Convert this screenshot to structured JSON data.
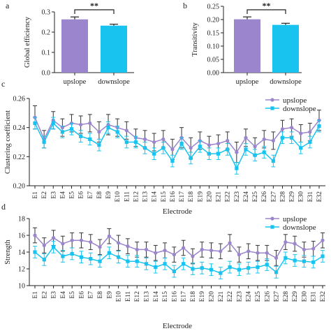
{
  "colors": {
    "upslope": "#9b85cc",
    "downslope": "#19c3f0",
    "axis": "#222222"
  },
  "chart_data": [
    {
      "panel_label": "a",
      "type": "bar",
      "categories": [
        "upslope",
        "downslope"
      ],
      "values": [
        0.263,
        0.232
      ],
      "errors": [
        0.012,
        0.007
      ],
      "ylabel": "Global efficiency",
      "xlabel": "",
      "ylim": [
        0,
        0.3
      ],
      "yticks": [
        "0.0",
        "0.1",
        "0.2",
        "0.3"
      ],
      "significance": "**"
    },
    {
      "panel_label": "b",
      "type": "bar",
      "categories": [
        "upslope",
        "downslope"
      ],
      "values": [
        0.201,
        0.18
      ],
      "errors": [
        0.009,
        0.006
      ],
      "ylabel": "Transitivity",
      "xlabel": "",
      "ylim": [
        0,
        0.25
      ],
      "yticks": [
        "0.00",
        "0.05",
        "0.10",
        "0.15",
        "0.20",
        "0.25"
      ],
      "significance": "**"
    },
    {
      "panel_label": "c",
      "type": "line",
      "ylabel": "Clustering coefficient",
      "xlabel": "Electrode",
      "ylim": [
        0.2,
        0.26
      ],
      "yticks": [
        "0.20",
        "0.22",
        "0.24",
        "0.26"
      ],
      "legend_position": "top-right",
      "categories": [
        "E1",
        "E2",
        "E3",
        "E4",
        "E5",
        "E6",
        "E7",
        "E8",
        "E9",
        "E10",
        "E11",
        "E12",
        "E13",
        "E14",
        "E15",
        "E16",
        "E17",
        "E18",
        "E19",
        "E20",
        "E21",
        "E22",
        "E23",
        "E24",
        "E25",
        "E26",
        "E27",
        "E28",
        "E29",
        "E30",
        "E31",
        "E32"
      ],
      "series": [
        {
          "name": "upslope",
          "values": [
            0.247,
            0.232,
            0.245,
            0.24,
            0.243,
            0.242,
            0.243,
            0.237,
            0.242,
            0.24,
            0.238,
            0.233,
            0.232,
            0.23,
            0.232,
            0.225,
            0.233,
            0.226,
            0.231,
            0.228,
            0.229,
            0.231,
            0.223,
            0.233,
            0.227,
            0.232,
            0.231,
            0.239,
            0.24,
            0.236,
            0.237,
            0.245
          ],
          "errors": [
            0.008,
            0.006,
            0.006,
            0.006,
            0.006,
            0.006,
            0.006,
            0.007,
            0.007,
            0.006,
            0.006,
            0.006,
            0.006,
            0.006,
            0.006,
            0.007,
            0.007,
            0.007,
            0.006,
            0.006,
            0.006,
            0.006,
            0.007,
            0.006,
            0.006,
            0.006,
            0.006,
            0.006,
            0.006,
            0.006,
            0.006,
            0.007
          ]
        },
        {
          "name": "downslope",
          "values": [
            0.243,
            0.23,
            0.243,
            0.237,
            0.239,
            0.234,
            0.232,
            0.228,
            0.24,
            0.237,
            0.23,
            0.23,
            0.226,
            0.222,
            0.226,
            0.217,
            0.229,
            0.219,
            0.227,
            0.222,
            0.222,
            0.225,
            0.212,
            0.225,
            0.221,
            0.223,
            0.217,
            0.233,
            0.233,
            0.226,
            0.23,
            0.241
          ],
          "errors": [
            0.004,
            0.004,
            0.004,
            0.004,
            0.004,
            0.004,
            0.004,
            0.004,
            0.004,
            0.004,
            0.004,
            0.004,
            0.004,
            0.004,
            0.004,
            0.004,
            0.004,
            0.004,
            0.004,
            0.004,
            0.004,
            0.004,
            0.004,
            0.004,
            0.004,
            0.004,
            0.004,
            0.004,
            0.004,
            0.004,
            0.004,
            0.004
          ]
        }
      ]
    },
    {
      "panel_label": "d",
      "type": "line",
      "ylabel": "Strength",
      "xlabel": "Electrode",
      "ylim": [
        10,
        18
      ],
      "yticks": [
        "10",
        "12",
        "14",
        "16",
        "18"
      ],
      "legend_position": "top-right",
      "categories": [
        "E1",
        "E2",
        "E3",
        "E4",
        "E5",
        "E6",
        "E7",
        "E8",
        "E9",
        "E10",
        "E11",
        "E12",
        "E13",
        "E14",
        "E15",
        "E16",
        "E17",
        "E18",
        "E19",
        "E20",
        "E21",
        "E22",
        "E23",
        "E24",
        "E25",
        "E26",
        "E27",
        "E28",
        "E29",
        "E30",
        "E31",
        "E32"
      ],
      "series": [
        {
          "name": "upslope",
          "values": [
            16.0,
            14.8,
            15.7,
            15.0,
            15.4,
            15.4,
            15.2,
            14.6,
            15.9,
            15.1,
            14.7,
            14.3,
            14.3,
            13.9,
            14.2,
            13.7,
            14.5,
            13.5,
            14.3,
            14.2,
            14.1,
            15.1,
            13.7,
            14.1,
            13.9,
            13.9,
            13.3,
            15.2,
            15.0,
            14.3,
            14.4,
            15.4
          ],
          "errors": [
            0.9,
            0.9,
            0.9,
            0.9,
            0.9,
            0.9,
            0.9,
            0.9,
            0.9,
            0.9,
            0.9,
            0.9,
            0.9,
            0.9,
            0.9,
            0.9,
            0.9,
            0.9,
            0.9,
            0.9,
            0.9,
            1.0,
            0.9,
            0.9,
            0.9,
            0.9,
            0.9,
            0.9,
            0.9,
            0.9,
            0.9,
            0.9
          ]
        },
        {
          "name": "downslope",
          "values": [
            14.0,
            13.1,
            14.6,
            13.5,
            13.8,
            13.4,
            13.2,
            12.9,
            13.9,
            13.4,
            12.9,
            12.9,
            12.6,
            12.2,
            12.6,
            11.7,
            12.6,
            12.0,
            12.1,
            11.9,
            11.5,
            12.2,
            11.9,
            12.1,
            12.2,
            12.5,
            11.6,
            13.3,
            13.0,
            12.9,
            12.8,
            13.5
          ],
          "errors": [
            0.7,
            0.7,
            0.7,
            0.7,
            0.7,
            0.7,
            0.7,
            0.7,
            0.7,
            0.7,
            0.7,
            0.7,
            0.7,
            0.7,
            0.7,
            0.7,
            0.7,
            0.7,
            0.7,
            0.7,
            0.7,
            0.7,
            0.7,
            0.7,
            0.7,
            0.7,
            0.7,
            0.7,
            0.7,
            0.7,
            0.7,
            0.7
          ]
        }
      ]
    }
  ]
}
